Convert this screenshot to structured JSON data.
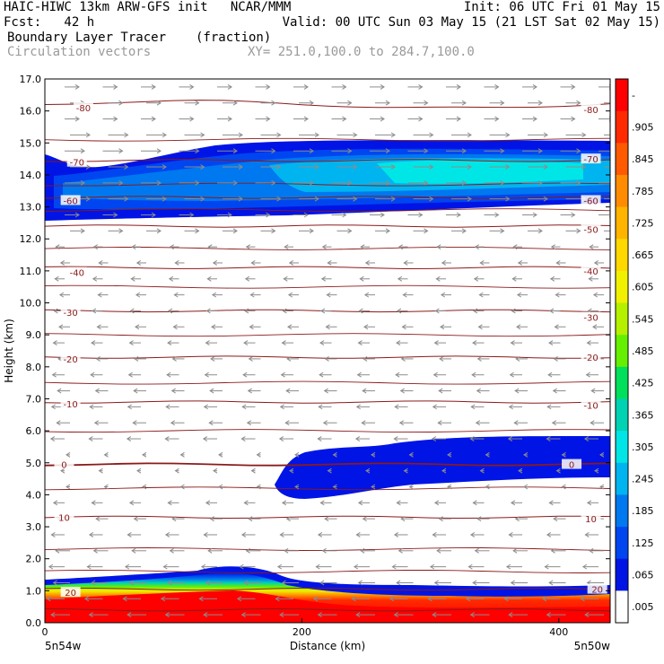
{
  "header": {
    "line1_left": "HAIC-HIWC 13km ARW-GFS init   NCAR/MMM",
    "line1_right": "Init: 06 UTC Fri 01 May 15",
    "line2_left": "Fcst:   42 h",
    "line2_right": "Valid: 00 UTC Sun 03 May 15 (21 LST Sat 02 May 15)",
    "field_name": "Boundary Layer Tracer",
    "field_unit": "(fraction)",
    "vectors_label": "Circulation vectors",
    "xy_label": "XY= 251.0,100.0 to 284.7,100.0"
  },
  "colors": {
    "background": "#ffffff",
    "contour": "#8b1a1a",
    "vector": "#8c8c8c",
    "faint_text": "#9a9a9a"
  },
  "chart_data": {
    "type": "heatmap",
    "title": "Boundary Layer Tracer (fraction)",
    "xlabel": "Distance (km)",
    "ylabel": "Height (km)",
    "xlim": [
      0,
      440
    ],
    "ylim": [
      0,
      17
    ],
    "x_ticks": [
      "0",
      "200",
      "400"
    ],
    "x_end_labels": {
      "left": "5n54w",
      "right": "5n50w"
    },
    "y_ticks": [
      "0.0",
      "1.0",
      "2.0",
      "3.0",
      "4.0",
      "5.0",
      "6.0",
      "7.0",
      "8.0",
      "9.0",
      "10.0",
      "11.0",
      "12.0",
      "13.0",
      "14.0",
      "15.0",
      "16.0",
      "17.0"
    ],
    "colorbar": {
      "labels": [
        "-",
        ".905",
        ".845",
        ".785",
        ".725",
        ".665",
        ".605",
        ".545",
        ".485",
        ".425",
        ".365",
        ".305",
        ".245",
        ".185",
        ".125",
        ".065",
        ".005"
      ],
      "colors": [
        "#ff0000",
        "#ff2a00",
        "#ff5a00",
        "#ff8c00",
        "#ffb400",
        "#ffd800",
        "#f0f000",
        "#b4f000",
        "#64f000",
        "#00e05a",
        "#00d2b4",
        "#00e6e6",
        "#00b4f0",
        "#0078f0",
        "#0046f0",
        "#0014e6",
        "#ffffff"
      ]
    },
    "contour_labels": [
      {
        "value": "-80",
        "x": 30,
        "y": 16.1
      },
      {
        "value": "-80",
        "x": 425,
        "y": 16.05
      },
      {
        "value": "-70",
        "x": 25,
        "y": 14.4
      },
      {
        "value": "-70",
        "x": 425,
        "y": 14.5
      },
      {
        "value": "-60",
        "x": 20,
        "y": 13.2
      },
      {
        "value": "-60",
        "x": 425,
        "y": 13.2
      },
      {
        "value": "-50",
        "x": 425,
        "y": 12.3
      },
      {
        "value": "-40",
        "x": 25,
        "y": 10.95
      },
      {
        "value": "-40",
        "x": 425,
        "y": 11.0
      },
      {
        "value": "-30",
        "x": 20,
        "y": 9.7
      },
      {
        "value": "-30",
        "x": 425,
        "y": 9.55
      },
      {
        "value": "-20",
        "x": 20,
        "y": 8.25
      },
      {
        "value": "-20",
        "x": 425,
        "y": 8.3
      },
      {
        "value": "-10",
        "x": 20,
        "y": 6.85
      },
      {
        "value": "-10",
        "x": 425,
        "y": 6.8
      },
      {
        "value": "0",
        "x": 15,
        "y": 4.95
      },
      {
        "value": "0",
        "x": 410,
        "y": 4.95
      },
      {
        "value": "10",
        "x": 15,
        "y": 3.3
      },
      {
        "value": "10",
        "x": 425,
        "y": 3.25
      },
      {
        "value": "20",
        "x": 20,
        "y": 0.95
      },
      {
        "value": "20",
        "x": 430,
        "y": 1.05
      }
    ],
    "vector_field": "circulation vectors: eastward aloft (above ~12 km), westward below ~11.5 km, weak near 5 km"
  }
}
